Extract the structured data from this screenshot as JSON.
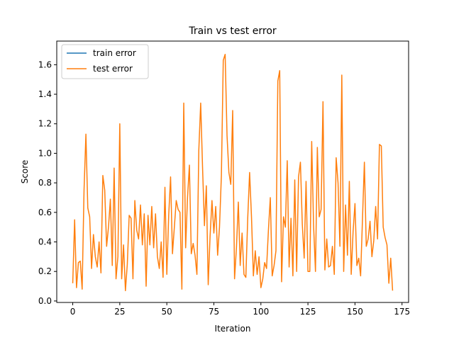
{
  "chart_data": {
    "type": "line",
    "title": "Train vs test error",
    "xlabel": "Iteration",
    "ylabel": "Score",
    "xlim": [
      -8.5,
      178.5
    ],
    "ylim": [
      -0.01,
      1.76
    ],
    "xticks": [
      0,
      25,
      50,
      75,
      100,
      125,
      150,
      175
    ],
    "yticks": [
      0.0,
      0.2,
      0.4,
      0.6,
      0.8,
      1.0,
      1.2,
      1.4,
      1.6
    ],
    "ytick_labels": [
      "0.0",
      "0.2",
      "0.4",
      "0.6",
      "0.8",
      "1.0",
      "1.2",
      "1.4",
      "1.6"
    ],
    "grid": false,
    "legend_position": "top-left",
    "series": [
      {
        "name": "train error",
        "color": "#1f77b4",
        "x": [],
        "y": []
      },
      {
        "name": "test error",
        "color": "#ff7f0e",
        "x": [
          0,
          1,
          2,
          3,
          4,
          5,
          6,
          7,
          8,
          9,
          10,
          11,
          12,
          13,
          14,
          15,
          16,
          17,
          18,
          19,
          20,
          21,
          22,
          23,
          24,
          25,
          26,
          27,
          28,
          29,
          30,
          31,
          32,
          33,
          34,
          35,
          36,
          37,
          38,
          39,
          40,
          41,
          42,
          43,
          44,
          45,
          46,
          47,
          48,
          49,
          50,
          51,
          52,
          53,
          54,
          55,
          56,
          57,
          58,
          59,
          60,
          61,
          62,
          63,
          64,
          65,
          66,
          67,
          68,
          69,
          70,
          71,
          72,
          73,
          74,
          75,
          76,
          77,
          78,
          79,
          80,
          81,
          82,
          83,
          84,
          85,
          86,
          87,
          88,
          89,
          90,
          91,
          92,
          93,
          94,
          95,
          96,
          97,
          98,
          99,
          100,
          101,
          102,
          103,
          104,
          105,
          106,
          107,
          108,
          109,
          110,
          111,
          112,
          113,
          114,
          115,
          116,
          117,
          118,
          119,
          120,
          121,
          122,
          123,
          124,
          125,
          126,
          127,
          128,
          129,
          130,
          131,
          132,
          133,
          134,
          135,
          136,
          137,
          138,
          139,
          140,
          141,
          142,
          143,
          144,
          145,
          146,
          147,
          148,
          149,
          150,
          151,
          152,
          153,
          154,
          155,
          156,
          157,
          158,
          159,
          160,
          161,
          162,
          163,
          164,
          165,
          166,
          167,
          168,
          169,
          170
        ],
        "y": [
          0.12,
          0.55,
          0.09,
          0.26,
          0.27,
          0.08,
          0.75,
          1.13,
          0.63,
          0.57,
          0.22,
          0.45,
          0.3,
          0.23,
          0.4,
          0.19,
          0.85,
          0.75,
          0.37,
          0.5,
          0.69,
          0.24,
          0.9,
          0.15,
          0.3,
          1.2,
          0.15,
          0.38,
          0.07,
          0.25,
          0.58,
          0.56,
          0.15,
          0.68,
          0.48,
          0.42,
          0.65,
          0.38,
          0.59,
          0.1,
          0.58,
          0.38,
          0.64,
          0.36,
          0.59,
          0.3,
          0.22,
          0.4,
          0.16,
          0.77,
          0.18,
          0.58,
          0.84,
          0.32,
          0.5,
          0.68,
          0.62,
          0.6,
          0.08,
          1.34,
          0.36,
          0.7,
          0.92,
          0.32,
          0.39,
          0.31,
          0.18,
          1.02,
          1.34,
          0.9,
          0.51,
          0.78,
          0.11,
          0.44,
          0.68,
          0.46,
          0.64,
          0.31,
          0.5,
          0.85,
          1.63,
          1.67,
          1.12,
          0.87,
          0.79,
          1.29,
          0.15,
          0.36,
          0.67,
          0.24,
          0.46,
          0.18,
          0.16,
          0.56,
          0.87,
          0.57,
          0.17,
          0.34,
          0.18,
          0.3,
          0.09,
          0.15,
          0.26,
          0.22,
          0.48,
          0.7,
          0.17,
          0.24,
          0.34,
          1.49,
          1.56,
          0.13,
          0.57,
          0.5,
          0.95,
          0.23,
          0.56,
          0.17,
          0.82,
          0.2,
          0.84,
          0.94,
          0.52,
          0.29,
          0.81,
          0.2,
          0.2,
          1.08,
          0.51,
          0.2,
          1.04,
          0.57,
          0.62,
          1.35,
          0.21,
          0.42,
          0.23,
          0.24,
          0.37,
          0.18,
          0.97,
          0.8,
          0.37,
          1.53,
          0.2,
          0.65,
          0.31,
          0.81,
          0.18,
          0.47,
          0.66,
          0.24,
          0.29,
          0.17,
          0.56,
          0.94,
          0.37,
          0.42,
          0.54,
          0.3,
          0.41,
          0.64,
          0.42,
          1.06,
          1.05,
          0.5,
          0.43,
          0.38,
          0.12,
          0.29,
          0.07
        ]
      }
    ]
  }
}
